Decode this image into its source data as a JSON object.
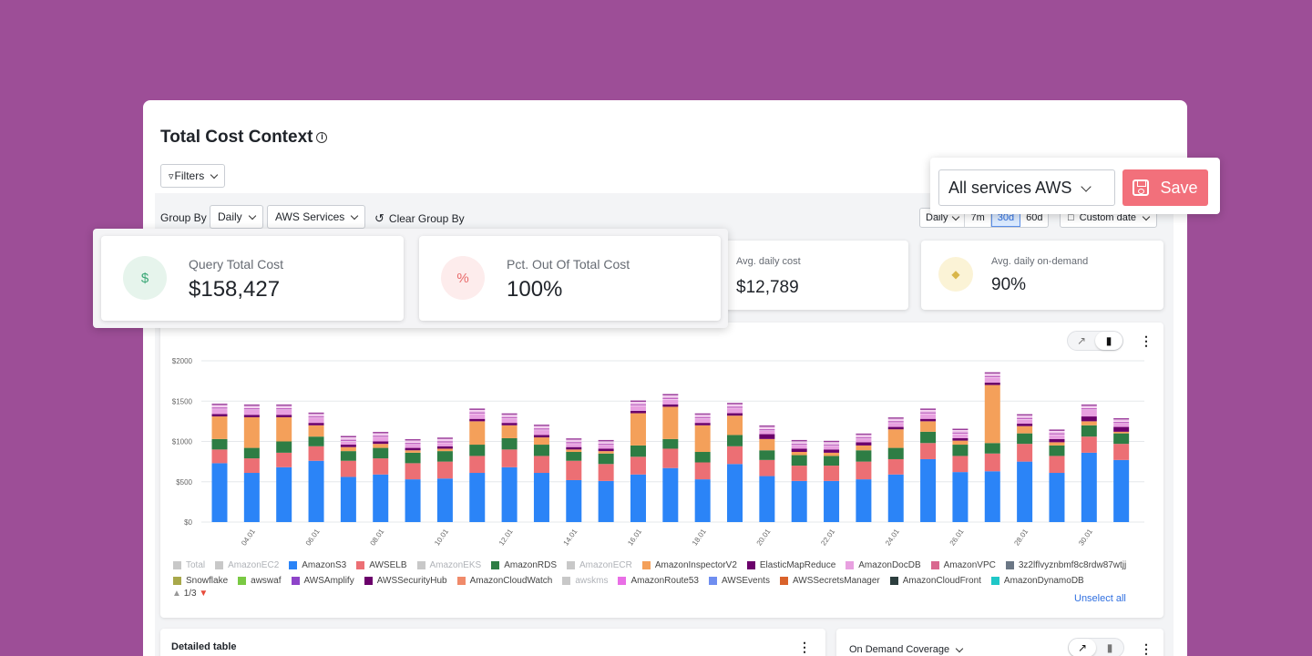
{
  "page": {
    "title": "Total Cost Context",
    "filters_label": "Filters"
  },
  "group_bar": {
    "group_by_label": "Group By",
    "group_by_value": "Daily",
    "dimension_value": "AWS Services",
    "clear_label": "Clear Group By",
    "granularity_value": "Daily",
    "ranges": [
      "7m",
      "30d",
      "60d"
    ],
    "active_range": "30d",
    "custom_date_label": "Custom date"
  },
  "save_popup": {
    "service_select": "All services AWS",
    "save_label": "Save"
  },
  "kpis": [
    {
      "label": "Query Total Cost",
      "value": "$158,427",
      "icon": "dollar-icon",
      "color": "#3aa776"
    },
    {
      "label": "Pct. Out Of Total Cost",
      "value": "100%",
      "icon": "percent-icon",
      "color": "#e86a6a"
    },
    {
      "label": "Avg. daily cost",
      "value": "$12,789"
    },
    {
      "label": "Avg. daily on-demand",
      "value": "90%",
      "icon": "tag-icon",
      "color": "#d9b64a"
    }
  ],
  "chart_data": {
    "type": "bar",
    "stacked": true,
    "ylim": [
      0,
      2000
    ],
    "y_ticks": [
      "$0",
      "$500",
      "$1000",
      "$1500",
      "$2000"
    ],
    "categories": [
      "03.01",
      "04.01",
      "05.01",
      "06.01",
      "07.01",
      "08.01",
      "09.01",
      "10.01",
      "11.01",
      "12.01",
      "13.01",
      "14.01",
      "15.01",
      "16.01",
      "17.01",
      "18.01",
      "19.01",
      "20.01",
      "21.01",
      "22.01",
      "23.01",
      "24.01",
      "25.01",
      "26.01",
      "27.01",
      "28.01",
      "29.01",
      "30.01",
      "31.01"
    ],
    "x_tick_labels": [
      "04.01",
      "06.01",
      "08.01",
      "10.01",
      "12.01",
      "14.01",
      "16.01",
      "18.01",
      "20.01",
      "22.01",
      "24.01",
      "26.01",
      "28.01",
      "30.01"
    ],
    "series": [
      {
        "name": "AmazonS3",
        "color": "#2b84f7",
        "values": [
          730,
          610,
          680,
          760,
          560,
          590,
          530,
          540,
          610,
          680,
          610,
          520,
          510,
          590,
          670,
          530,
          720,
          570,
          510,
          510,
          530,
          590,
          780,
          620,
          630,
          750,
          610,
          860,
          770
        ]
      },
      {
        "name": "AWSELB",
        "color": "#ec6f74",
        "values": [
          170,
          180,
          180,
          180,
          200,
          200,
          200,
          210,
          210,
          220,
          210,
          240,
          210,
          220,
          240,
          210,
          220,
          200,
          190,
          190,
          220,
          190,
          200,
          200,
          220,
          220,
          210,
          200,
          200
        ]
      },
      {
        "name": "AmazonRDS",
        "color": "#2e7d44",
        "values": [
          130,
          130,
          140,
          120,
          120,
          130,
          130,
          130,
          140,
          140,
          140,
          110,
          130,
          140,
          120,
          130,
          140,
          120,
          130,
          120,
          140,
          140,
          140,
          140,
          130,
          130,
          130,
          140,
          130
        ]
      },
      {
        "name": "AmazonInspectorV2",
        "color": "#f4a05a",
        "values": [
          280,
          380,
          300,
          140,
          50,
          50,
          30,
          30,
          290,
          160,
          90,
          30,
          30,
          400,
          400,
          330,
          240,
          140,
          40,
          40,
          60,
          230,
          130,
          50,
          720,
          90,
          40,
          50,
          20
        ]
      },
      {
        "name": "ElasticMapReduce",
        "color": "#6b006b",
        "values": [
          30,
          30,
          30,
          30,
          30,
          30,
          30,
          30,
          30,
          30,
          30,
          30,
          30,
          30,
          30,
          30,
          30,
          60,
          40,
          40,
          40,
          30,
          30,
          30,
          30,
          30,
          40,
          60,
          60
        ]
      },
      {
        "name": "AmazonDocDB",
        "color": "#e8a0e0",
        "values": [
          60,
          60,
          60,
          60,
          40,
          50,
          40,
          40,
          60,
          50,
          60,
          40,
          40,
          60,
          60,
          50,
          60,
          40,
          40,
          40,
          40,
          50,
          60,
          50,
          60,
          50,
          50,
          80,
          40
        ]
      }
    ],
    "legend": [
      {
        "name": "Total",
        "color": "#c8c8c8",
        "muted": true
      },
      {
        "name": "AmazonEC2",
        "color": "#c8c8c8",
        "muted": true
      },
      {
        "name": "AmazonS3",
        "color": "#2b84f7"
      },
      {
        "name": "AWSELB",
        "color": "#ec6f74"
      },
      {
        "name": "AmazonEKS",
        "color": "#c8c8c8",
        "muted": true
      },
      {
        "name": "AmazonRDS",
        "color": "#2e7d44"
      },
      {
        "name": "AmazonECR",
        "color": "#c8c8c8",
        "muted": true
      },
      {
        "name": "AmazonInspectorV2",
        "color": "#f4a05a"
      },
      {
        "name": "ElasticMapReduce",
        "color": "#6b006b"
      },
      {
        "name": "AmazonDocDB",
        "color": "#e8a0e0"
      },
      {
        "name": "AmazonVPC",
        "color": "#d9678f"
      },
      {
        "name": "3z2lflvyznbmf8c8rdw87wtjj",
        "color": "#6b7785"
      },
      {
        "name": "Snowflake",
        "color": "#a8a84a"
      },
      {
        "name": "awswaf",
        "color": "#7ac943"
      },
      {
        "name": "AWSAmplify",
        "color": "#8e44c9"
      },
      {
        "name": "AWSSecurityHub",
        "color": "#6b006b"
      },
      {
        "name": "AmazonCloudWatch",
        "color": "#f08a6a"
      },
      {
        "name": "awskms",
        "color": "#c8c8c8",
        "muted": true
      },
      {
        "name": "AmazonRoute53",
        "color": "#e96fe6"
      },
      {
        "name": "AWSEvents",
        "color": "#6f8ef0"
      },
      {
        "name": "AWSSecretsManager",
        "color": "#d9622b"
      },
      {
        "name": "AmazonCloudFront",
        "color": "#2c3e3e"
      },
      {
        "name": "AmazonDynamoDB",
        "color": "#1fc7c7"
      }
    ],
    "pager": "1/3",
    "unselect_label": "Unselect all"
  },
  "bottom": {
    "detailed_title": "Detailed table",
    "coverage_title": "On Demand Coverage"
  }
}
